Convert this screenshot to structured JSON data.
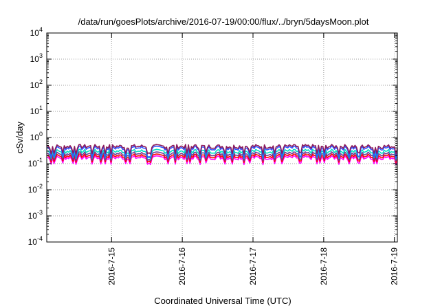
{
  "chart_data": {
    "type": "line",
    "title": "/data/run/goesPlots/archive/2016-07-19/00:00/flux/../bryn/5daysMoon.plot",
    "xlabel": "Coordinated Universal Time (UTC)",
    "ylabel": "cSv/day",
    "yscale": "log",
    "ylim": [
      0.0001,
      10000
    ],
    "xlim": [
      "2016-07-14T02:00",
      "2016-07-19T01:00"
    ],
    "grid": true,
    "y_ticks": [
      {
        "base": "10",
        "exp": "4",
        "value": 10000
      },
      {
        "base": "10",
        "exp": "3",
        "value": 1000
      },
      {
        "base": "10",
        "exp": "2",
        "value": 100
      },
      {
        "base": "10",
        "exp": "1",
        "value": 10
      },
      {
        "base": "10",
        "exp": "0",
        "value": 1
      },
      {
        "base": "10",
        "exp": "-1",
        "value": 0.1
      },
      {
        "base": "10",
        "exp": "-2",
        "value": 0.01
      },
      {
        "base": "10",
        "exp": "-3",
        "value": 0.001
      },
      {
        "base": "10",
        "exp": "-4",
        "value": 0.0001
      }
    ],
    "x_ticks": [
      {
        "label": "2016-7-15",
        "value": "2016-07-15"
      },
      {
        "label": "2016-7-16",
        "value": "2016-07-16"
      },
      {
        "label": "2016-7-17",
        "value": "2016-07-17"
      },
      {
        "label": "2016-7-18",
        "value": "2016-07-18"
      },
      {
        "label": "2016-7-19",
        "value": "2016-07-19"
      }
    ],
    "series": [
      {
        "color": "#ff00ff",
        "level": 0.17,
        "dip": 0.1
      },
      {
        "color": "#ff0000",
        "level": 0.2,
        "dip": 0.12
      },
      {
        "color": "#6a3d9a",
        "level": 0.24,
        "dip": 0.14
      },
      {
        "color": "#00e0c0",
        "level": 0.3,
        "dip": 0.17
      },
      {
        "color": "#2f55ff",
        "level": 0.4,
        "dip": 0.18
      },
      {
        "color": "#8b1a5c",
        "level": 0.46,
        "dip": 0.25
      }
    ]
  }
}
